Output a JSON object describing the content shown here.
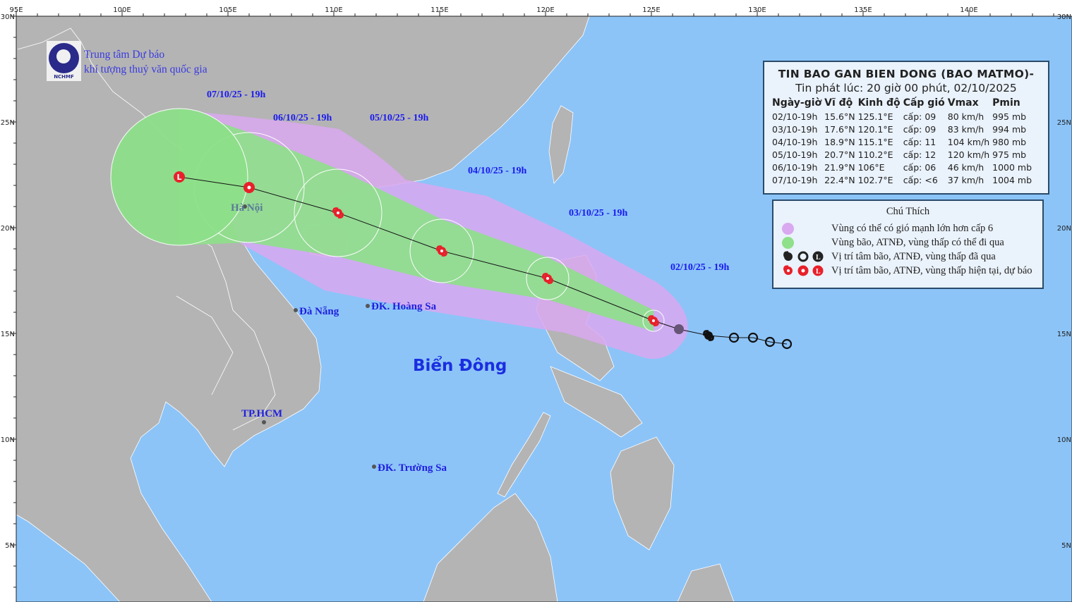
{
  "header": {
    "org_line1": "Trung tâm Dự báo",
    "org_line2": "khí tượng thuỷ văn quốc gia",
    "logo_text": "NCHMF"
  },
  "axes": {
    "lon_ticks": [
      "95E",
      "100E",
      "105E",
      "110E",
      "115E",
      "120E",
      "125E",
      "130E",
      "135E",
      "140E"
    ],
    "lat_ticks": [
      "30N",
      "25N",
      "20N",
      "15N",
      "10N",
      "5N"
    ]
  },
  "bulletin": {
    "title": "TIN BAO GAN BIEN DONG (BAO MATMO)-",
    "issued": "Tin phát lúc: 20 giờ 00 phút, 02/10/2025",
    "columns": [
      "Ngày-giờ",
      "Vĩ độ",
      "Kinh độ",
      "Cấp gió",
      "Vmax",
      "Pmin"
    ],
    "rows": [
      [
        "02/10-19h",
        "15.6°N",
        "125.1°E",
        "cấp: 09",
        "80 km/h",
        "995 mb"
      ],
      [
        "03/10-19h",
        "17.6°N",
        "120.1°E",
        "cấp: 09",
        "83 km/h",
        "994 mb"
      ],
      [
        "04/10-19h",
        "18.9°N",
        "115.1°E",
        "cấp: 11",
        "104 km/h",
        "980 mb"
      ],
      [
        "05/10-19h",
        "20.7°N",
        "110.2°E",
        "cấp: 12",
        "120 km/h",
        "975 mb"
      ],
      [
        "06/10-19h",
        "21.9°N",
        "106°E",
        "cấp: 06",
        "46 km/h",
        "1000 mb"
      ],
      [
        "07/10-19h",
        "22.4°N",
        "102.7°E",
        "cấp: <6",
        "37 km/h",
        "1004 mb"
      ]
    ]
  },
  "legend": {
    "title": "Chú Thích",
    "items": [
      {
        "label": "Vùng có thể có gió mạnh lớn hơn cấp 6",
        "color": "#d9a8f0"
      },
      {
        "label": "Vùng bão, ATNĐ, vùng thấp có thể đi qua",
        "color": "#8ee08a"
      },
      {
        "label": "Vị trí tâm bão, ATNĐ, vùng thấp đã qua",
        "color": "#222222"
      },
      {
        "label": "Vị trí tâm bão, ATNĐ, vùng thấp hiện tại, dự báo",
        "color": "#e8202a"
      }
    ]
  },
  "track": {
    "forecast": [
      {
        "label": "02/10/25 - 19h",
        "lat": 15.6,
        "lon": 125.1,
        "symbol": "storm"
      },
      {
        "label": "03/10/25 - 19h",
        "lat": 17.6,
        "lon": 120.1,
        "symbol": "storm"
      },
      {
        "label": "04/10/25 - 19h",
        "lat": 18.9,
        "lon": 115.1,
        "symbol": "storm"
      },
      {
        "label": "05/10/25 - 19h",
        "lat": 20.7,
        "lon": 110.2,
        "symbol": "storm"
      },
      {
        "label": "06/10/25 - 19h",
        "lat": 21.9,
        "lon": 106.0,
        "symbol": "depression"
      },
      {
        "label": "07/10/25 - 19h",
        "lat": 22.4,
        "lon": 102.7,
        "symbol": "low"
      }
    ],
    "past": [
      {
        "lat": 15.2,
        "lon": 126.3,
        "symbol": "low-grey"
      },
      {
        "lat": 14.9,
        "lon": 127.7,
        "symbol": "storm"
      },
      {
        "lat": 14.8,
        "lon": 128.9,
        "symbol": "depression"
      },
      {
        "lat": 14.8,
        "lon": 129.8,
        "symbol": "depression"
      },
      {
        "lat": 14.6,
        "lon": 130.6,
        "symbol": "depression"
      },
      {
        "lat": 14.5,
        "lon": 131.4,
        "symbol": "depression"
      }
    ]
  },
  "places": [
    {
      "name": "Hà Nội",
      "lat": 21.0,
      "lon": 105.8
    },
    {
      "name": "Đà Nẵng",
      "lat": 16.1,
      "lon": 108.2
    },
    {
      "name": "ĐK. Hoàng Sa",
      "lat": 16.3,
      "lon": 111.6
    },
    {
      "name": "TP.HCM",
      "lat": 10.8,
      "lon": 106.7
    },
    {
      "name": "ĐK. Trường Sa",
      "lat": 8.7,
      "lon": 111.9
    }
  ],
  "sea_label": "Biển Đông",
  "colors": {
    "sea": "#8cc4f8",
    "land": "#b4b4b4",
    "storm": "#e8202a",
    "past": "#111111"
  }
}
